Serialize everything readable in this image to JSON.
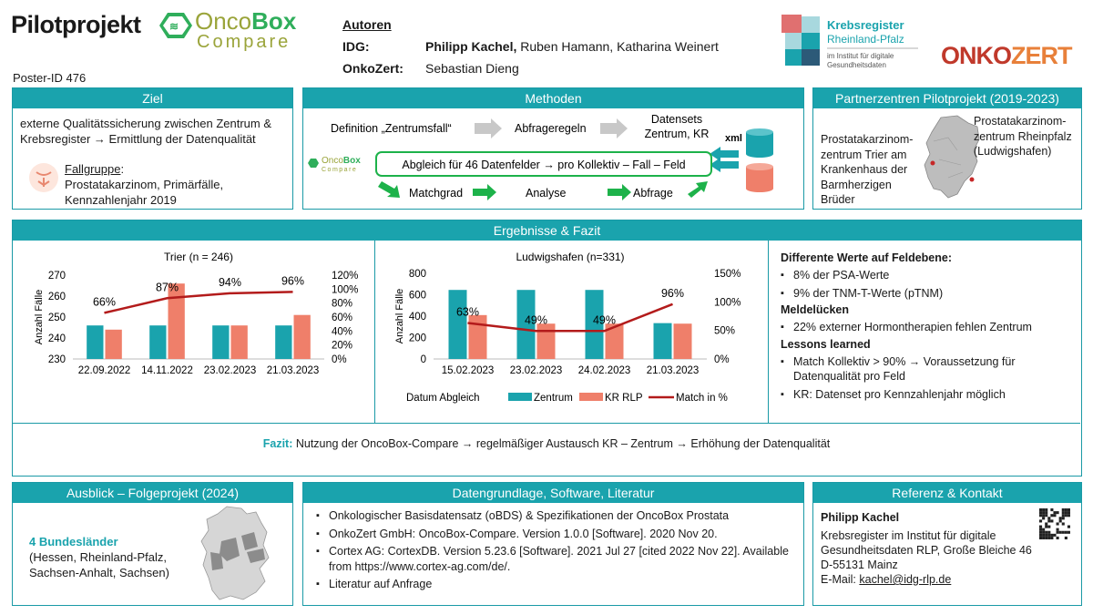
{
  "header": {
    "title": "Pilotprojekt",
    "logo_onco": "Onco",
    "logo_box": "Box",
    "logo_compare": "Compare",
    "poster_id": "Poster-ID 476",
    "authors_heading": "Autoren",
    "idg_label": "IDG:",
    "idg_first": "Philipp Kachel,",
    "idg_rest": " Ruben Hamann, Katharina Weinert",
    "oz_label": "OnkoZert:",
    "oz_names": "Sebastian Dieng",
    "kr_logo_line1": "Krebsregister",
    "kr_logo_line2": "Rheinland-Pfalz",
    "kr_logo_line3": "im Institut für digitale",
    "kr_logo_line4": "Gesundheitsdaten",
    "onkozert_logo_a": "ONKO",
    "onkozert_logo_b": "ZERT"
  },
  "ziel": {
    "title": "Ziel",
    "text": "externe Qualitätssicherung zwischen Zentrum & Krebsregister → Ermittlung der Datenqualität",
    "fallgruppe_label": "Fallgruppe",
    "fallgruppe_suffix": ":",
    "fall_line1": "Prostatakarzinom, Primärfälle,",
    "fall_line2": "Kennzahlenjahr 2019"
  },
  "methoden": {
    "title": "Methoden",
    "step1": "Definition „Zentrumsfall“",
    "step2": "Abfrageregeln",
    "step3a": "Datensets",
    "step3b": "Zentrum, KR",
    "xml": "xml",
    "abgleich": "Abgleich für 46 Datenfelder → pro Kollektiv – Fall – Feld",
    "step4": "Matchgrad",
    "step5": "Analyse",
    "step6": "Abfrage",
    "mini_logo_a": "Onco",
    "mini_logo_b": "Box",
    "mini_logo_c": "Compare"
  },
  "partner": {
    "title": "Partnerzentren Pilotprojekt (2019-2023)",
    "left_text": "Prostatakarzinom-zentrum Trier am Krankenhaus der Barmherzigen Brüder",
    "right_text": "Prostatakarzinom-zentrum Rheinpfalz (Ludwigshafen)"
  },
  "ergebnisse": {
    "title": "Ergebnisse & Fazit",
    "fazit_label": "Fazit:",
    "fazit_text": " Nutzung der OncoBox-Compare  → regelmäßiger Austausch KR – Zentrum  → Erhöhung der Datenqualität",
    "findings": {
      "h1": "Differente Werte auf Feldebene:",
      "b1": [
        "8% der PSA-Werte",
        "9% der TNM-T-Werte (pTNM)"
      ],
      "h2": "Meldelücken",
      "b2": [
        "22% externer Hormontherapien fehlen Zentrum"
      ],
      "h3": "Lessons learned",
      "b3": [
        "Match Kollektiv > 90% → Voraussetzung für Datenqualität pro Feld",
        "KR: Datenset pro Kennzahlenjahr möglich"
      ]
    }
  },
  "ausblick": {
    "title": "Ausblick – Folgeprojekt (2024)",
    "highlight": "4 Bundesländer",
    "text": "(Hessen, Rheinland-Pfalz, Sachsen-Anhalt, Sachsen)"
  },
  "daten": {
    "title": "Datengrundlage, Software, Literatur",
    "items": [
      "Onkologischer Basisdatensatz (oBDS) & Spezifikationen der OncoBox Prostata",
      "OnkoZert GmbH: OncoBox-Compare. Version 1.0.0 [Software]. 2020 Nov 20.",
      "Cortex AG: CortexDB. Version 5.23.6 [Software]. 2021 Jul 27 [cited 2022 Nov 22]. Available from https://www.cortex-ag.com/de/.",
      "Literatur auf Anfrage"
    ]
  },
  "referenz": {
    "title": "Referenz & Kontakt",
    "name": "Philipp Kachel",
    "line1": "Krebsregister im Institut für digitale",
    "line2": "Gesundheitsdaten RLP, Große Bleiche 46",
    "line3": "D-55131 Mainz",
    "email_label": "E-Mail: ",
    "email": "kachel@idg-rlp.de"
  },
  "colors": {
    "teal": "#1aa3ad",
    "salmon": "#ef7f6a",
    "darkred": "#b31b1b",
    "green": "#1db24a"
  },
  "chart_data": [
    {
      "type": "bar",
      "title": "Trier (n = 246)",
      "categories": [
        "22.09.2022",
        "14.11.2022",
        "23.02.2023",
        "21.03.2023"
      ],
      "series": [
        {
          "name": "Zentrum",
          "values": [
            246,
            246,
            246,
            246
          ]
        },
        {
          "name": "KR RLP",
          "values": [
            244,
            266,
            246,
            251
          ]
        },
        {
          "name": "Match in %",
          "type": "line",
          "axis": "right",
          "values": [
            66,
            87,
            94,
            96
          ]
        }
      ],
      "ylabel": "Anzahl Fälle",
      "ylim": [
        230,
        270
      ],
      "yticks": [
        230,
        240,
        250,
        260,
        270
      ],
      "y2lim": [
        0,
        120
      ],
      "y2ticks": [
        "0%",
        "20%",
        "40%",
        "60%",
        "80%",
        "100%",
        "120%"
      ],
      "data_labels": [
        "66%",
        "87%",
        "94%",
        "96%"
      ]
    },
    {
      "type": "bar",
      "title": "Ludwigshafen (n=331)",
      "categories": [
        "15.02.2023",
        "23.02.2023",
        "24.02.2023",
        "21.03.2023"
      ],
      "series": [
        {
          "name": "Zentrum",
          "values": [
            645,
            645,
            645,
            335
          ]
        },
        {
          "name": "KR RLP",
          "values": [
            410,
            330,
            330,
            330
          ]
        },
        {
          "name": "Match in %",
          "type": "line",
          "axis": "right",
          "values": [
            63,
            49,
            49,
            96
          ]
        }
      ],
      "ylabel": "Anzahl Fälle",
      "ylim": [
        0,
        800
      ],
      "yticks": [
        0,
        200,
        400,
        600,
        800
      ],
      "y2lim": [
        0,
        150
      ],
      "y2ticks": [
        "0%",
        "50%",
        "100%",
        "150%"
      ],
      "data_labels": [
        "63%",
        "49%",
        "49%",
        "96%"
      ],
      "legend_title": "Datum Abgleich",
      "legend": [
        "Zentrum",
        "KR RLP",
        "Match in %"
      ]
    }
  ]
}
